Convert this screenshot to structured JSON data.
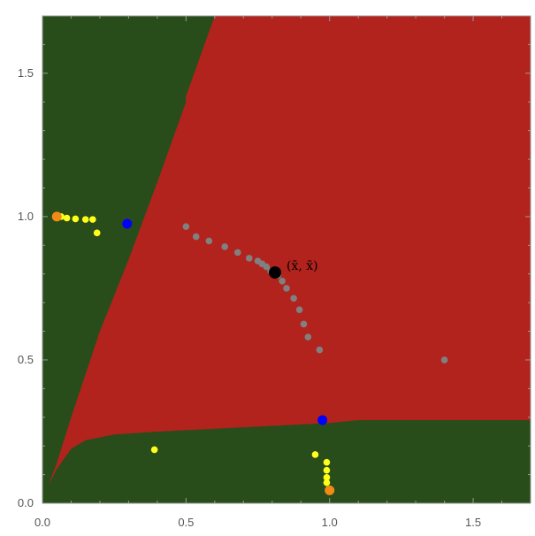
{
  "chart_data": {
    "type": "scatter",
    "title": "",
    "xlabel": "",
    "ylabel": "",
    "xlim": [
      0,
      1.7
    ],
    "ylim": [
      0,
      1.7
    ],
    "x_ticks": [
      "0.0",
      "0.5",
      "1.0",
      "1.5"
    ],
    "y_ticks": [
      "0.0",
      "0.5",
      "1.0",
      "1.5"
    ],
    "grid": false,
    "legend": "none",
    "colors": {
      "region_green": "#284d1a",
      "region_red": "#b2231d",
      "gray": "#808080",
      "yellow": "#ffff1a",
      "orange": "#f28b16",
      "blue": "#0000ff",
      "black": "#000000"
    },
    "regions": {
      "red_boundary_left": [
        [
          0.02,
          0.06
        ],
        [
          0.05,
          0.14
        ],
        [
          0.1,
          0.3
        ],
        [
          0.2,
          0.6
        ],
        [
          0.3,
          0.85
        ],
        [
          0.4,
          1.12
        ],
        [
          0.5,
          1.4
        ],
        [
          0.5,
          1.42
        ],
        [
          0.6,
          1.7
        ]
      ],
      "red_boundary_bottom": [
        [
          0.02,
          0.06
        ],
        [
          0.05,
          0.12
        ],
        [
          0.1,
          0.19
        ],
        [
          0.15,
          0.22
        ],
        [
          0.25,
          0.24
        ],
        [
          0.4,
          0.25
        ],
        [
          0.6,
          0.26
        ],
        [
          0.8,
          0.27
        ],
        [
          1.0,
          0.28
        ],
        [
          1.1,
          0.29
        ],
        [
          1.7,
          0.29
        ]
      ]
    },
    "series": [
      {
        "color": "gray",
        "points": [
          [
            0.5,
            0.965
          ],
          [
            0.535,
            0.93
          ],
          [
            0.58,
            0.915
          ],
          [
            0.635,
            0.895
          ],
          [
            0.68,
            0.875
          ],
          [
            0.72,
            0.855
          ],
          [
            0.75,
            0.845
          ],
          [
            0.765,
            0.835
          ],
          [
            0.78,
            0.825
          ],
          [
            0.795,
            0.81
          ],
          [
            0.82,
            0.795
          ],
          [
            0.835,
            0.775
          ],
          [
            0.85,
            0.75
          ],
          [
            0.875,
            0.715
          ],
          [
            0.895,
            0.675
          ],
          [
            0.91,
            0.625
          ],
          [
            0.925,
            0.58
          ],
          [
            0.965,
            0.535
          ],
          [
            1.4,
            0.5
          ]
        ]
      },
      {
        "color": "yellow",
        "points": [
          [
            0.065,
            1.0
          ],
          [
            0.085,
            0.995
          ],
          [
            0.115,
            0.992
          ],
          [
            0.15,
            0.99
          ],
          [
            0.175,
            0.99
          ],
          [
            0.19,
            0.943
          ],
          [
            0.39,
            0.187
          ],
          [
            0.95,
            0.17
          ],
          [
            0.99,
            0.143
          ],
          [
            0.99,
            0.115
          ],
          [
            0.99,
            0.09
          ],
          [
            0.99,
            0.072
          ]
        ]
      },
      {
        "color": "orange",
        "points": [
          [
            0.05,
            1.0
          ],
          [
            1.0,
            0.045
          ]
        ]
      },
      {
        "color": "blue",
        "points": [
          [
            0.295,
            0.975
          ],
          [
            0.975,
            0.29
          ]
        ]
      },
      {
        "color": "black",
        "points": [
          [
            0.81,
            0.805
          ]
        ]
      }
    ],
    "annotations": [
      {
        "text": "(x̄,  x̄)",
        "x": 0.85,
        "y": 0.83
      }
    ]
  }
}
